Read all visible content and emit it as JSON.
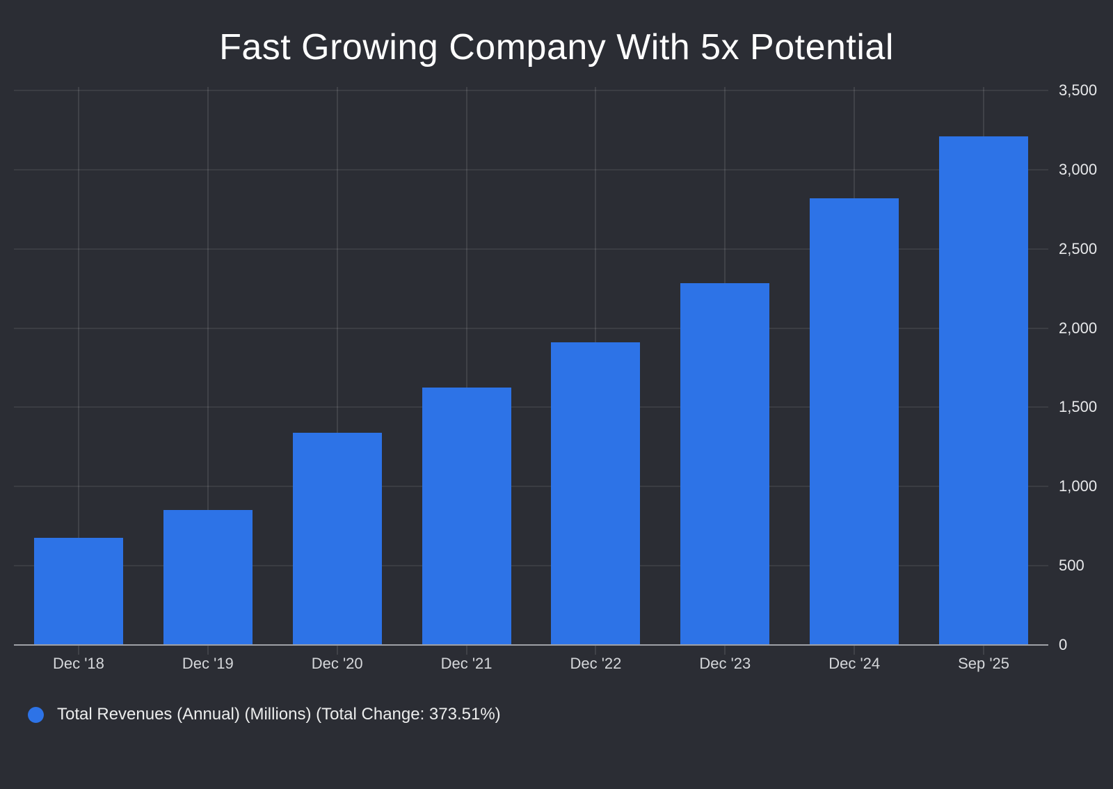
{
  "title": "Fast Growing Company With 5x Potential",
  "legend": {
    "label": "Total Revenues (Annual) (Millions) (Total Change: 373.51%)",
    "marker": "circle-icon"
  },
  "chart_data": {
    "type": "bar",
    "title": "Fast Growing Company With 5x Potential",
    "categories": [
      "Dec '18",
      "Dec '19",
      "Dec '20",
      "Dec '21",
      "Dec '22",
      "Dec '23",
      "Dec '24",
      "Sep '25"
    ],
    "series": [
      {
        "name": "Total Revenues (Annual) (Millions)",
        "total_change": "373.51%",
        "values": [
          678,
          853,
          1341,
          1627,
          1912,
          2285,
          2820,
          3211
        ]
      }
    ],
    "xlabel": "",
    "ylabel": "",
    "ylim": [
      0,
      3500
    ],
    "y_ticks": [
      0,
      500,
      1000,
      1500,
      2000,
      2500,
      3000,
      3500
    ],
    "y_tick_labels": [
      "0",
      "500",
      "1,000",
      "1,500",
      "2,000",
      "2,500",
      "3,000",
      "3,500"
    ],
    "y_axis_side": "right",
    "grid": true,
    "legend_position": "bottom-left"
  },
  "colors": {
    "background": "#2b2d34",
    "bar": "#2d73e7",
    "grid_horizontal": "rgba(255,255,255,0.08)",
    "grid_vertical": "rgba(255,255,255,0.10)",
    "axis_line": "#9fa1a7",
    "title_text": "#ffffff",
    "y_label_text": "#e8e9eb",
    "x_label_text": "#d5d7da",
    "legend_text": "#eceded"
  }
}
